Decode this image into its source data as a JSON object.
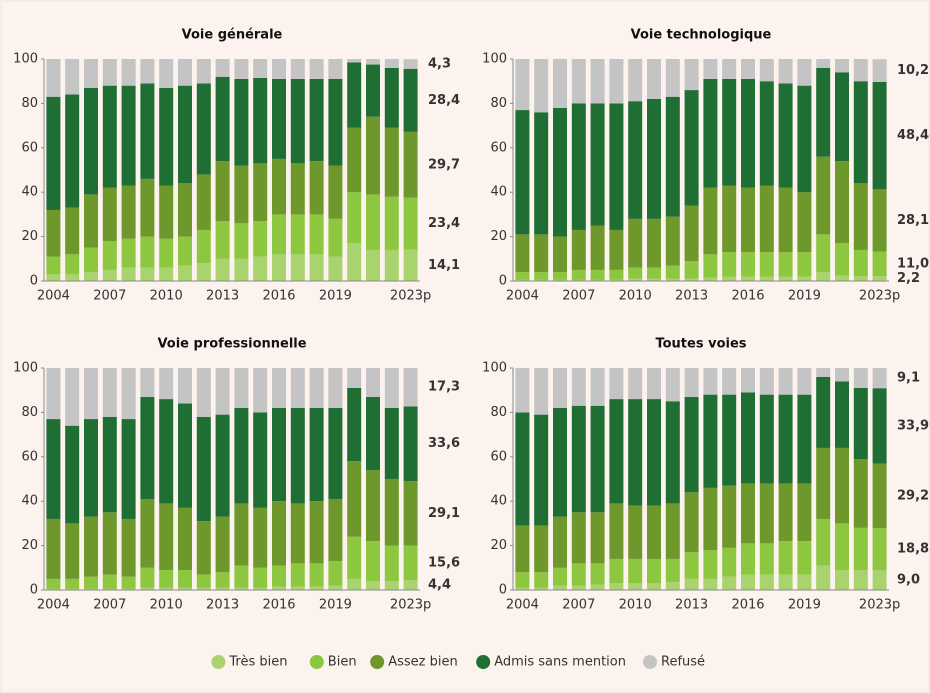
{
  "chart_data": [
    {
      "type": "stacked-bar",
      "title": "Voie générale",
      "categories": [
        "2004",
        null,
        null,
        "2007",
        null,
        null,
        "2010",
        null,
        null,
        "2013",
        null,
        null,
        "2016",
        null,
        null,
        "2019",
        null,
        null,
        null,
        "2023p"
      ],
      "ylim": [
        0,
        100
      ],
      "yticks": [
        0,
        20,
        40,
        60,
        80,
        100
      ],
      "series": [
        {
          "name": "Très bien",
          "color": "#a9d36e",
          "values": [
            3,
            3,
            4,
            5,
            6,
            6,
            6,
            7,
            8,
            10,
            10,
            11,
            12,
            12,
            12,
            11,
            17,
            14,
            14,
            14.1
          ],
          "value_labels": [
            null,
            null,
            null,
            null,
            null,
            null,
            null,
            null,
            null,
            null,
            null,
            null,
            null,
            null,
            null,
            null,
            null,
            null,
            null,
            "14,1"
          ]
        },
        {
          "name": "Bien",
          "color": "#8dc63f",
          "values": [
            8,
            9,
            11,
            13,
            13,
            14,
            13,
            13,
            15,
            17,
            16,
            16,
            18,
            18,
            18,
            17,
            23,
            25,
            24,
            23.4
          ],
          "value_labels": [
            null,
            null,
            null,
            null,
            null,
            null,
            null,
            null,
            null,
            null,
            null,
            null,
            null,
            null,
            null,
            null,
            null,
            null,
            null,
            "23,4"
          ]
        },
        {
          "name": "Assez bien",
          "color": "#6e972c",
          "values": [
            21,
            21,
            24,
            24,
            24,
            26,
            24,
            24,
            25,
            27,
            26,
            26,
            25,
            23,
            24,
            24,
            29,
            35,
            31,
            29.7
          ],
          "value_labels": [
            null,
            null,
            null,
            null,
            null,
            null,
            null,
            null,
            null,
            null,
            null,
            null,
            null,
            null,
            null,
            null,
            null,
            null,
            null,
            "29,7"
          ]
        },
        {
          "name": "Admis sans mention",
          "color": "#1f6e33",
          "values": [
            51,
            51,
            48,
            46,
            45,
            43,
            44,
            44,
            41,
            38,
            39,
            38.5,
            36,
            38,
            37,
            39,
            29.5,
            23.5,
            27,
            28.4
          ],
          "value_labels": [
            null,
            null,
            null,
            null,
            null,
            null,
            null,
            null,
            null,
            null,
            null,
            null,
            null,
            null,
            null,
            null,
            null,
            null,
            null,
            "28,4"
          ]
        },
        {
          "name": "Refusé",
          "color": "#c4c4c4",
          "values": [
            17,
            16,
            13,
            12,
            12,
            11,
            13,
            12,
            11,
            8,
            9,
            8.5,
            9,
            9,
            9,
            9,
            1.5,
            2.5,
            4,
            4.3
          ],
          "value_labels": [
            null,
            null,
            null,
            null,
            null,
            null,
            null,
            null,
            null,
            null,
            null,
            null,
            null,
            null,
            null,
            null,
            null,
            null,
            null,
            "4,3"
          ]
        }
      ]
    },
    {
      "type": "stacked-bar",
      "title": "Voie technologique",
      "categories": [
        "2004",
        null,
        null,
        "2007",
        null,
        null,
        "2010",
        null,
        null,
        "2013",
        null,
        null,
        "2016",
        null,
        null,
        "2019",
        null,
        null,
        null,
        "2023p"
      ],
      "ylim": [
        0,
        100
      ],
      "yticks": [
        0,
        20,
        40,
        60,
        80,
        100
      ],
      "series": [
        {
          "name": "Très bien",
          "color": "#a9d36e",
          "values": [
            0.5,
            0.5,
            0.5,
            0.5,
            0.5,
            0.5,
            1,
            1,
            1,
            1,
            1.5,
            2,
            2,
            2,
            2,
            2,
            4,
            2.5,
            2.2,
            2.2
          ],
          "value_labels": [
            null,
            null,
            null,
            null,
            null,
            null,
            null,
            null,
            null,
            null,
            null,
            null,
            null,
            null,
            null,
            null,
            null,
            null,
            null,
            "2,2"
          ]
        },
        {
          "name": "Bien",
          "color": "#8dc63f",
          "values": [
            3.5,
            3.5,
            3.5,
            4.5,
            4.5,
            4.5,
            5,
            5,
            6,
            8,
            10.5,
            11,
            11,
            11,
            11,
            11,
            17,
            14.5,
            11.8,
            11.0
          ],
          "value_labels": [
            null,
            null,
            null,
            null,
            null,
            null,
            null,
            null,
            null,
            null,
            null,
            null,
            null,
            null,
            null,
            null,
            null,
            null,
            null,
            "11,0"
          ]
        },
        {
          "name": "Assez bien",
          "color": "#6e972c",
          "values": [
            17,
            17,
            16,
            18,
            20,
            18,
            22,
            22,
            22,
            25,
            30,
            30,
            29,
            30,
            29,
            27,
            35,
            37,
            30,
            28.1
          ],
          "value_labels": [
            null,
            null,
            null,
            null,
            null,
            null,
            null,
            null,
            null,
            null,
            null,
            null,
            null,
            null,
            null,
            null,
            null,
            null,
            null,
            "28,1"
          ]
        },
        {
          "name": "Admis sans mention",
          "color": "#1f6e33",
          "values": [
            56,
            55,
            58,
            57,
            55,
            57,
            53,
            54,
            54,
            52,
            49,
            48,
            49,
            47,
            47,
            48,
            40,
            40,
            46,
            48.4
          ],
          "value_labels": [
            null,
            null,
            null,
            null,
            null,
            null,
            null,
            null,
            null,
            null,
            null,
            null,
            null,
            null,
            null,
            null,
            null,
            null,
            null,
            "48,4"
          ]
        },
        {
          "name": "Refusé",
          "color": "#c4c4c4",
          "values": [
            23,
            24,
            22,
            20,
            20,
            20,
            19,
            18,
            17,
            14,
            9,
            9,
            9,
            10,
            11,
            12,
            4,
            6,
            10,
            10.2
          ],
          "value_labels": [
            null,
            null,
            null,
            null,
            null,
            null,
            null,
            null,
            null,
            null,
            null,
            null,
            null,
            null,
            null,
            null,
            null,
            null,
            null,
            "10,2"
          ]
        }
      ]
    },
    {
      "type": "stacked-bar",
      "title": "Voie professionnelle",
      "categories": [
        "2004",
        null,
        null,
        "2007",
        null,
        null,
        "2010",
        null,
        null,
        "2013",
        null,
        null,
        "2016",
        null,
        null,
        "2019",
        null,
        null,
        null,
        "2023p"
      ],
      "ylim": [
        0,
        100
      ],
      "yticks": [
        0,
        20,
        40,
        60,
        80,
        100
      ],
      "series": [
        {
          "name": "Très bien",
          "color": "#a9d36e",
          "values": [
            0.5,
            0.5,
            0.5,
            0.5,
            0.5,
            1,
            1,
            1,
            1,
            1,
            1,
            1,
            1.5,
            1.5,
            1.5,
            2,
            5,
            4,
            4,
            4.4
          ],
          "value_labels": [
            null,
            null,
            null,
            null,
            null,
            null,
            null,
            null,
            null,
            null,
            null,
            null,
            null,
            null,
            null,
            null,
            null,
            null,
            null,
            "4,4"
          ]
        },
        {
          "name": "Bien",
          "color": "#8dc63f",
          "values": [
            4.5,
            4.5,
            5.5,
            6.5,
            5.5,
            9,
            8,
            8,
            6,
            7,
            10,
            9,
            9.5,
            10.5,
            10.5,
            11,
            19,
            18,
            16,
            15.6
          ],
          "value_labels": [
            null,
            null,
            null,
            null,
            null,
            null,
            null,
            null,
            null,
            null,
            null,
            null,
            null,
            null,
            null,
            null,
            null,
            null,
            null,
            "15,6"
          ]
        },
        {
          "name": "Assez bien",
          "color": "#6e972c",
          "values": [
            27,
            25,
            27,
            28,
            26,
            31,
            30,
            28,
            24,
            25,
            28,
            27,
            29,
            27,
            28,
            28,
            34,
            32,
            30,
            29.1
          ],
          "value_labels": [
            null,
            null,
            null,
            null,
            null,
            null,
            null,
            null,
            null,
            null,
            null,
            null,
            null,
            null,
            null,
            null,
            null,
            null,
            null,
            "29,1"
          ]
        },
        {
          "name": "Admis sans mention",
          "color": "#1f6e33",
          "values": [
            45,
            44,
            44,
            43,
            45,
            46,
            47,
            47,
            47,
            46,
            43,
            43,
            42,
            43,
            42,
            41,
            33,
            33,
            32,
            33.6
          ],
          "value_labels": [
            null,
            null,
            null,
            null,
            null,
            null,
            null,
            null,
            null,
            null,
            null,
            null,
            null,
            null,
            null,
            null,
            null,
            null,
            null,
            "33,6"
          ]
        },
        {
          "name": "Refusé",
          "color": "#c4c4c4",
          "values": [
            23,
            26,
            23,
            22,
            23,
            13,
            14,
            16,
            22,
            21,
            18,
            20,
            18,
            18,
            18,
            18,
            9,
            13,
            18,
            17.3
          ],
          "value_labels": [
            null,
            null,
            null,
            null,
            null,
            null,
            null,
            null,
            null,
            null,
            null,
            null,
            null,
            null,
            null,
            null,
            null,
            null,
            null,
            "17,3"
          ]
        }
      ]
    },
    {
      "type": "stacked-bar",
      "title": "Toutes voies",
      "categories": [
        "2004",
        null,
        null,
        "2007",
        null,
        null,
        "2010",
        null,
        null,
        "2013",
        null,
        null,
        "2016",
        null,
        null,
        "2019",
        null,
        null,
        null,
        "2023p"
      ],
      "ylim": [
        0,
        100
      ],
      "yticks": [
        0,
        20,
        40,
        60,
        80,
        100
      ],
      "series": [
        {
          "name": "Très bien",
          "color": "#a9d36e",
          "values": [
            1,
            1,
            2,
            2,
            2.5,
            3,
            3,
            3,
            3.5,
            5,
            5,
            6,
            7,
            7,
            7,
            7,
            11,
            9,
            9,
            9.0
          ],
          "value_labels": [
            null,
            null,
            null,
            null,
            null,
            null,
            null,
            null,
            null,
            null,
            null,
            null,
            null,
            null,
            null,
            null,
            null,
            null,
            null,
            "9,0"
          ]
        },
        {
          "name": "Bien",
          "color": "#8dc63f",
          "values": [
            7,
            7,
            8,
            10,
            9.5,
            11,
            11,
            11,
            10.5,
            12,
            13,
            13,
            14,
            14,
            15,
            15,
            21,
            21,
            19,
            18.8
          ],
          "value_labels": [
            null,
            null,
            null,
            null,
            null,
            null,
            null,
            null,
            null,
            null,
            null,
            null,
            null,
            null,
            null,
            null,
            null,
            null,
            null,
            "18,8"
          ]
        },
        {
          "name": "Assez bien",
          "color": "#6e972c",
          "values": [
            21,
            21,
            23,
            23,
            23,
            25,
            24,
            24,
            25,
            27,
            28,
            28,
            27,
            27,
            26,
            26,
            32,
            34,
            31,
            29.2
          ],
          "value_labels": [
            null,
            null,
            null,
            null,
            null,
            null,
            null,
            null,
            null,
            null,
            null,
            null,
            null,
            null,
            null,
            null,
            null,
            null,
            null,
            "29,2"
          ]
        },
        {
          "name": "Admis sans mention",
          "color": "#1f6e33",
          "values": [
            51,
            50,
            49,
            48,
            48,
            47,
            48,
            48,
            46,
            43,
            42,
            41,
            41,
            40,
            40,
            40,
            32,
            30,
            32,
            33.9
          ],
          "value_labels": [
            null,
            null,
            null,
            null,
            null,
            null,
            null,
            null,
            null,
            null,
            null,
            null,
            null,
            null,
            null,
            null,
            null,
            null,
            null,
            "33,9"
          ]
        },
        {
          "name": "Refusé",
          "color": "#c4c4c4",
          "values": [
            20,
            21,
            18,
            17,
            17,
            14,
            14,
            14,
            15,
            13,
            12,
            12,
            11,
            12,
            12,
            12,
            4,
            6,
            9,
            9.1
          ],
          "value_labels": [
            null,
            null,
            null,
            null,
            null,
            null,
            null,
            null,
            null,
            null,
            null,
            null,
            null,
            null,
            null,
            null,
            null,
            null,
            null,
            "9,1"
          ]
        }
      ]
    }
  ]
}
